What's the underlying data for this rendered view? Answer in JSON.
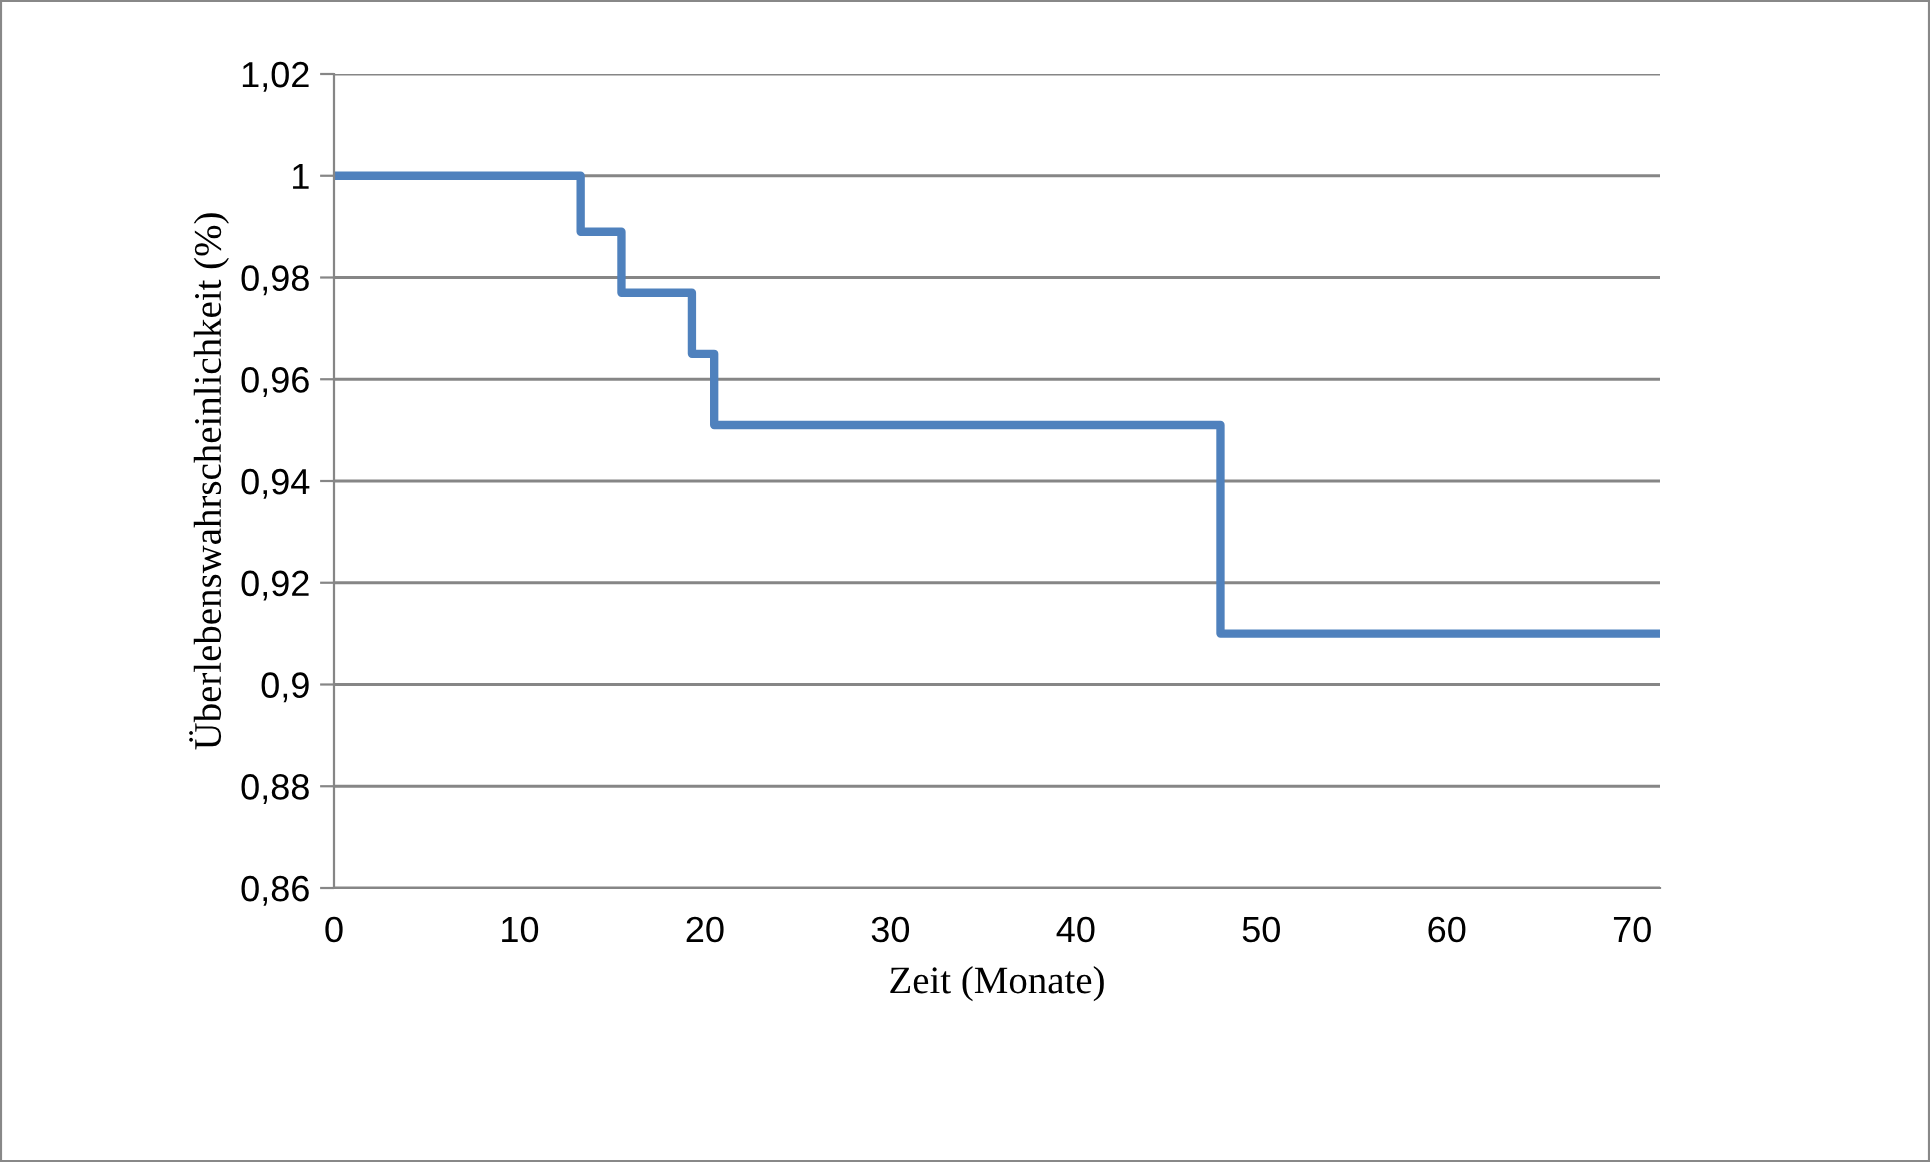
{
  "chart_data": {
    "type": "step",
    "xlabel": "Zeit (Monate)",
    "ylabel": "Überlebenswahrscheinlichkeit (%)",
    "x": [
      0,
      13.3,
      15.5,
      19.3,
      20.5,
      47.8,
      71.5
    ],
    "series": [
      {
        "color": "#4f81bd",
        "values": [
          1.0,
          0.989,
          0.977,
          0.965,
          0.951,
          0.91,
          0.91
        ]
      }
    ],
    "xlim": [
      0,
      71.5
    ],
    "xticks": [
      0,
      10,
      20,
      30,
      40,
      50,
      60,
      70
    ],
    "ylim": [
      0.86,
      1.02
    ],
    "yticks": [
      {
        "value": 0.86,
        "label": "0,86"
      },
      {
        "value": 0.88,
        "label": "0,88"
      },
      {
        "value": 0.9,
        "label": "0,9"
      },
      {
        "value": 0.92,
        "label": "0,92"
      },
      {
        "value": 0.94,
        "label": "0,94"
      },
      {
        "value": 0.96,
        "label": "0,96"
      },
      {
        "value": 0.98,
        "label": "0,98"
      },
      {
        "value": 1.0,
        "label": "1"
      },
      {
        "value": 1.02,
        "label": "1,02"
      }
    ],
    "grid": "y",
    "legend": false,
    "marker": "none",
    "line_style": "solid"
  }
}
